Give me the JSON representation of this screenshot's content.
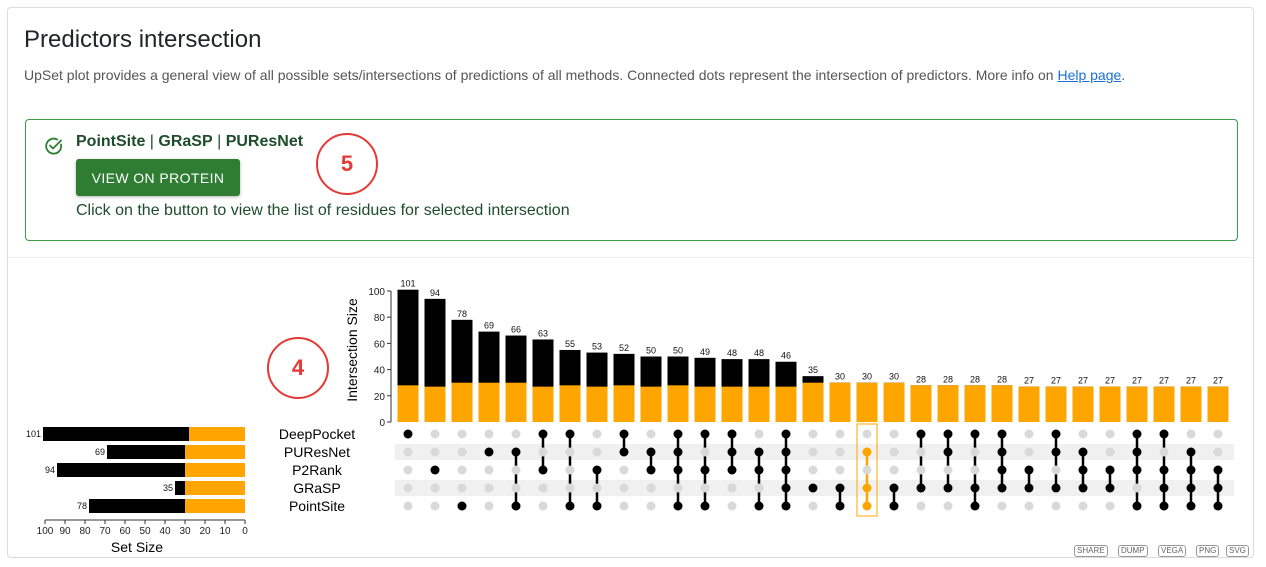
{
  "header": {
    "title": "Predictors intersection",
    "description": "UpSet plot provides a general view of all possible sets/intersections of predictions of all methods. Connected dots represent the intersection of predictors. More info on ",
    "help_link": "Help page",
    "description_end": "."
  },
  "selection": {
    "sets": [
      "PointSite",
      "GRaSP",
      "PUResNet"
    ],
    "separator": " | ",
    "button_label": "VIEW ON PROTEIN",
    "hint": "Click on the button to view the list of residues for selected intersection",
    "icon": "check-circle-icon",
    "color": "#2e7d32"
  },
  "annotations": {
    "marker_4": "4",
    "marker_5": "5"
  },
  "export_buttons": [
    "SHARE",
    "DUMP",
    "VEGA",
    "PNG",
    "SVG"
  ],
  "colors": {
    "bar": "#000000",
    "highlight": "#ffa500",
    "inactive_dot": "#d9d9d9",
    "row_stripe": "#f0f0f0"
  },
  "chart_data": {
    "type": "upset",
    "sets": [
      "DeepPocket",
      "PUResNet",
      "P2Rank",
      "GRaSP",
      "PointSite"
    ],
    "set_sizes": [
      101,
      69,
      94,
      35,
      78
    ],
    "set_sizes_highlight": [
      28,
      30,
      30,
      30,
      30
    ],
    "set_size_label": "Set Size",
    "set_size_axis": {
      "ticks": [
        100,
        90,
        80,
        70,
        60,
        50,
        40,
        30,
        20,
        10,
        0
      ],
      "max": 100
    },
    "intersection_label": "Intersection Size",
    "intersection_axis": {
      "ticks": [
        0,
        20,
        40,
        60,
        80,
        100
      ],
      "max": 100
    },
    "intersections": [
      {
        "size": 101,
        "highlight": 28,
        "members": [
          0
        ]
      },
      {
        "size": 94,
        "highlight": 27,
        "members": [
          2
        ]
      },
      {
        "size": 78,
        "highlight": 30,
        "members": [
          4
        ]
      },
      {
        "size": 69,
        "highlight": 30,
        "members": [
          1
        ]
      },
      {
        "size": 66,
        "highlight": 30,
        "members": [
          1,
          4
        ]
      },
      {
        "size": 63,
        "highlight": 27,
        "members": [
          0,
          2
        ]
      },
      {
        "size": 55,
        "highlight": 28,
        "members": [
          0,
          4
        ]
      },
      {
        "size": 53,
        "highlight": 27,
        "members": [
          2,
          4
        ]
      },
      {
        "size": 52,
        "highlight": 28,
        "members": [
          0,
          1
        ]
      },
      {
        "size": 50,
        "highlight": 27,
        "members": [
          1,
          2
        ]
      },
      {
        "size": 50,
        "highlight": 28,
        "members": [
          0,
          1,
          2,
          4
        ]
      },
      {
        "size": 49,
        "highlight": 27,
        "members": [
          0,
          2,
          4
        ]
      },
      {
        "size": 48,
        "highlight": 27,
        "members": [
          0,
          1,
          2
        ]
      },
      {
        "size": 48,
        "highlight": 27,
        "members": [
          1,
          2,
          4
        ]
      },
      {
        "size": 46,
        "highlight": 27,
        "members": [
          0,
          1,
          2,
          3,
          4
        ]
      },
      {
        "size": 35,
        "highlight": 30,
        "members": [
          3
        ]
      },
      {
        "size": 30,
        "highlight": 30,
        "members": [
          3,
          4
        ]
      },
      {
        "size": 30,
        "highlight": 30,
        "members": [
          1,
          3,
          4
        ],
        "selected": true
      },
      {
        "size": 30,
        "highlight": 30,
        "members": [
          3,
          4
        ]
      },
      {
        "size": 28,
        "highlight": 28,
        "members": [
          0,
          3
        ]
      },
      {
        "size": 28,
        "highlight": 28,
        "members": [
          0,
          1,
          3
        ]
      },
      {
        "size": 28,
        "highlight": 28,
        "members": [
          0,
          3,
          4
        ]
      },
      {
        "size": 28,
        "highlight": 28,
        "members": [
          0,
          1,
          2,
          3
        ]
      },
      {
        "size": 27,
        "highlight": 27,
        "members": [
          2,
          3
        ]
      },
      {
        "size": 27,
        "highlight": 27,
        "members": [
          0,
          1,
          3
        ]
      },
      {
        "size": 27,
        "highlight": 27,
        "members": [
          1,
          2,
          3
        ]
      },
      {
        "size": 27,
        "highlight": 27,
        "members": [
          2,
          3
        ]
      },
      {
        "size": 27,
        "highlight": 27,
        "members": [
          0,
          1,
          2,
          4
        ]
      },
      {
        "size": 27,
        "highlight": 27,
        "members": [
          0,
          2,
          3,
          4
        ]
      },
      {
        "size": 27,
        "highlight": 27,
        "members": [
          1,
          2,
          3,
          4
        ]
      },
      {
        "size": 27,
        "highlight": 27,
        "members": [
          2,
          3,
          4
        ]
      }
    ]
  }
}
